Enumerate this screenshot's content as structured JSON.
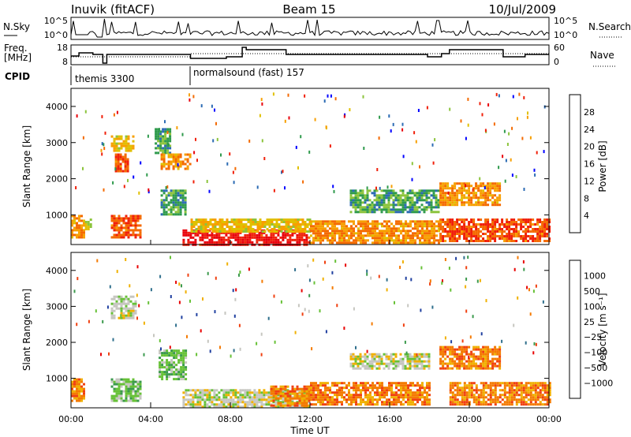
{
  "header": {
    "title_left": "Inuvik (fitACF)",
    "title_center": "Beam 15",
    "title_right": "10/Jul/2009"
  },
  "nsky_panel": {
    "left_label": "N.Sky",
    "right_label": "N.Search",
    "ticks_left": [
      "10^5",
      "10^0"
    ],
    "ticks_right": [
      "10^5",
      "10^0"
    ]
  },
  "freq_panel": {
    "left_label_line1": "Freq.",
    "left_label_line2": "[MHz]",
    "right_label": "Nave",
    "ticks_left": [
      "18",
      "8"
    ],
    "ticks_right": [
      "60",
      "0"
    ]
  },
  "cpid": {
    "label": "CPID",
    "segments": [
      {
        "start_hour": 0,
        "text": "themis 3300"
      },
      {
        "start_hour": 6,
        "text": "normalsound (fast) 157"
      }
    ]
  },
  "power_panel": {
    "ylabel": "Slant Range [km]",
    "colorbar_label": "Power [dB]",
    "colorbar_ticks": [
      "28",
      "24",
      "20",
      "16",
      "12",
      "8",
      "4"
    ],
    "colors": [
      "#e8000b",
      "#f0200a",
      "#f46a00",
      "#f79f00",
      "#e0c000",
      "#8cc43c",
      "#2f9a4c",
      "#2c6bb4",
      "#0000ff"
    ]
  },
  "velocity_panel": {
    "ylabel": "Slant Range [km]",
    "colorbar_label": "Velocity [m s⁻¹]",
    "colorbar_ticks": [
      "1000",
      "500",
      "100",
      "25",
      "−25",
      "−100",
      "−500",
      "−1000"
    ],
    "colors": [
      "#2040a0",
      "#2f6f8c",
      "#3b9a4c",
      "#67c137",
      "#c6c6c0",
      "#f0b000",
      "#f47a00",
      "#f04010",
      "#e80000"
    ]
  },
  "x_axis": {
    "label": "Time UT",
    "tick_labels": [
      "00:00",
      "04:00",
      "08:00",
      "12:00",
      "16:00",
      "20:00",
      "00:00"
    ]
  },
  "chart_data": [
    {
      "type": "heatmap",
      "title": "Inuvik (fitACF) Beam 15 10/Jul/2009",
      "xlabel": "Time UT",
      "ylabel": "Slant Range [km]",
      "xlim_hours": [
        0,
        24
      ],
      "ylim": [
        180,
        4500
      ],
      "y_ticks": [
        1000,
        2000,
        3000,
        4000
      ],
      "colorbar": {
        "label": "Power [dB]",
        "ticks": [
          4,
          8,
          12,
          16,
          20,
          24,
          28
        ],
        "range": [
          0,
          30
        ]
      },
      "regions": [
        {
          "t": [
            0.0,
            0.6
          ],
          "r": [
            400,
            1000
          ],
          "v": 20
        },
        {
          "t": [
            0.7,
            1.0
          ],
          "r": [
            600,
            900
          ],
          "v": 12
        },
        {
          "t": [
            2.0,
            3.5
          ],
          "r": [
            350,
            1000
          ],
          "v": 24
        },
        {
          "t": [
            2.0,
            3.1
          ],
          "r": [
            2800,
            3200
          ],
          "v": 16
        },
        {
          "t": [
            2.2,
            2.9
          ],
          "r": [
            2200,
            2700
          ],
          "v": 24
        },
        {
          "t": [
            4.2,
            5.0
          ],
          "r": [
            2700,
            3400
          ],
          "v": 8
        },
        {
          "t": [
            4.5,
            6.0
          ],
          "r": [
            2300,
            2700
          ],
          "v": 20
        },
        {
          "t": [
            4.5,
            5.8
          ],
          "r": [
            1000,
            1700
          ],
          "v": 8
        },
        {
          "t": [
            5.6,
            12.0
          ],
          "r": [
            200,
            600
          ],
          "v": 28
        },
        {
          "t": [
            6.0,
            12.0
          ],
          "r": [
            550,
            900
          ],
          "v": 16
        },
        {
          "t": [
            12.0,
            18.5
          ],
          "r": [
            200,
            850
          ],
          "v": 20
        },
        {
          "t": [
            14.0,
            18.5
          ],
          "r": [
            1100,
            1700
          ],
          "v": 8
        },
        {
          "t": [
            18.5,
            21.5
          ],
          "r": [
            1300,
            1900
          ],
          "v": 20
        },
        {
          "t": [
            18.5,
            24.0
          ],
          "r": [
            300,
            900
          ],
          "v": 24
        }
      ]
    },
    {
      "type": "heatmap",
      "xlabel": "Time UT",
      "ylabel": "Slant Range [km]",
      "xlim_hours": [
        0,
        24
      ],
      "ylim": [
        180,
        4500
      ],
      "y_ticks": [
        1000,
        2000,
        3000,
        4000
      ],
      "colorbar": {
        "label": "Velocity [m s⁻¹]",
        "ticks": [
          1000,
          500,
          100,
          25,
          -25,
          -100,
          -500,
          -1000
        ]
      },
      "regions": [
        {
          "t": [
            0.0,
            0.6
          ],
          "r": [
            400,
            1000
          ],
          "v": -300
        },
        {
          "t": [
            2.0,
            3.5
          ],
          "r": [
            350,
            1000
          ],
          "v": 60
        },
        {
          "t": [
            2.0,
            3.2
          ],
          "r": [
            2700,
            3300
          ],
          "v": 0
        },
        {
          "t": [
            4.4,
            5.8
          ],
          "r": [
            1000,
            1800
          ],
          "v": 100
        },
        {
          "t": [
            5.6,
            12.0
          ],
          "r": [
            200,
            700
          ],
          "v": 0
        },
        {
          "t": [
            10.0,
            12.0
          ],
          "r": [
            250,
            800
          ],
          "v": -200
        },
        {
          "t": [
            12.0,
            18.0
          ],
          "r": [
            300,
            900
          ],
          "v": -300
        },
        {
          "t": [
            14.0,
            18.0
          ],
          "r": [
            1300,
            1700
          ],
          "v": 0
        },
        {
          "t": [
            18.5,
            21.5
          ],
          "r": [
            1300,
            1900
          ],
          "v": -300
        },
        {
          "t": [
            19.0,
            24.0
          ],
          "r": [
            300,
            900
          ],
          "v": -200
        }
      ]
    }
  ]
}
